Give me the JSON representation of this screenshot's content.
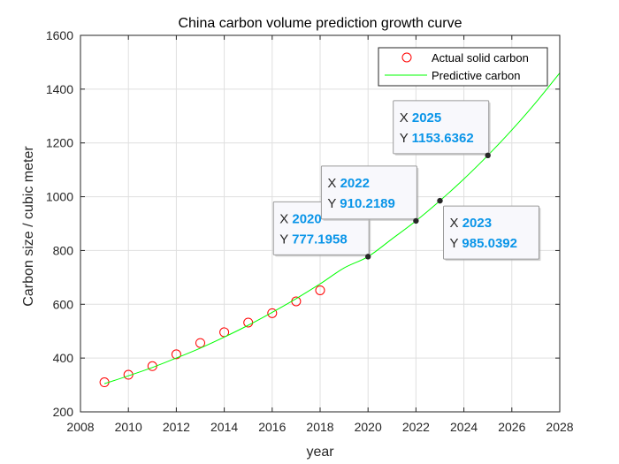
{
  "chart_data": {
    "type": "scatter",
    "title": "China carbon volume prediction growth curve",
    "xlabel": "year",
    "ylabel": "Carbon size / cubic meter",
    "xlim": [
      2008,
      2028
    ],
    "ylim": [
      200,
      1600
    ],
    "xticks": [
      2008,
      2010,
      2012,
      2014,
      2016,
      2018,
      2020,
      2022,
      2024,
      2026,
      2028
    ],
    "yticks": [
      200,
      400,
      600,
      800,
      1000,
      1200,
      1400,
      1600
    ],
    "grid": true,
    "legend_position": "top-right",
    "series": [
      {
        "name": "Actual solid carbon",
        "kind": "markers",
        "marker": "circle",
        "color": "#ff0000",
        "x": [
          2009,
          2010,
          2011,
          2012,
          2013,
          2014,
          2015,
          2016,
          2017,
          2018
        ],
        "y": [
          310,
          338,
          370,
          414,
          456,
          496,
          532,
          567,
          611,
          652
        ]
      },
      {
        "name": "Predictive carbon",
        "kind": "line",
        "color": "#00ff00",
        "x": [
          2009,
          2010,
          2011,
          2012,
          2013,
          2014,
          2015,
          2016,
          2017,
          2018,
          2019,
          2020,
          2021,
          2022,
          2023,
          2024,
          2025,
          2026,
          2027,
          2028
        ],
        "y": [
          305,
          334,
          365,
          400,
          437,
          478,
          522,
          570,
          621,
          676,
          735,
          777.1958,
          843,
          910.2189,
          985.0392,
          1066,
          1153.6362,
          1248,
          1350,
          1460
        ]
      }
    ],
    "datatips": [
      {
        "x": 2020,
        "y": "777.1958",
        "x_label": "X",
        "y_label": "Y",
        "anchor": "upper-left"
      },
      {
        "x": 2022,
        "y": "910.2189",
        "x_label": "X",
        "y_label": "Y",
        "anchor": "upper-left"
      },
      {
        "x": 2023,
        "y": "985.0392",
        "x_label": "X",
        "y_label": "Y",
        "anchor": "lower-right"
      },
      {
        "x": 2025,
        "y": "1153.6362",
        "x_label": "X",
        "y_label": "Y",
        "anchor": "upper-left"
      }
    ],
    "colors": {
      "axis": "#262626",
      "grid": "#dfdfdf",
      "datatip_value": "#0a95e8",
      "datatip_point": "#262626"
    }
  }
}
